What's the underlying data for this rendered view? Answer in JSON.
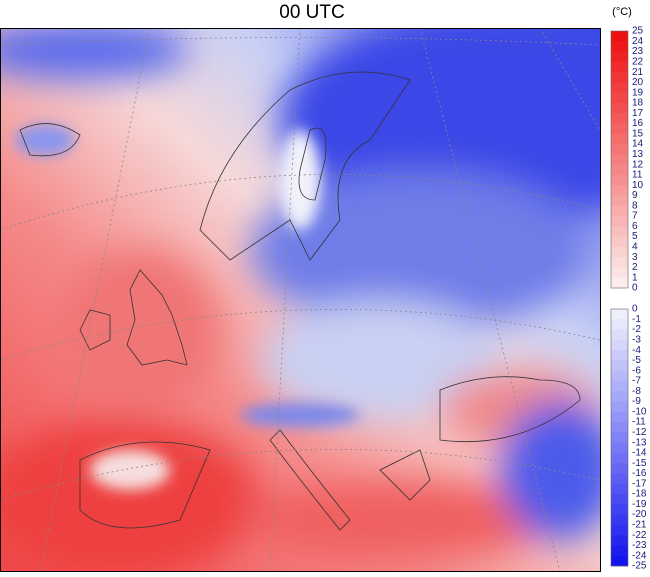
{
  "title": "00 UTC",
  "unit": "(°C)",
  "warm_scale": {
    "ticks": [
      25,
      24,
      23,
      22,
      21,
      20,
      19,
      18,
      17,
      16,
      15,
      14,
      13,
      12,
      11,
      10,
      9,
      8,
      7,
      6,
      5,
      4,
      3,
      2,
      1,
      0
    ]
  },
  "cold_scale": {
    "ticks": [
      0,
      -1,
      -2,
      -3,
      -4,
      -5,
      -6,
      -7,
      -8,
      -9,
      -10,
      -11,
      -12,
      -13,
      -14,
      -15,
      -16,
      -17,
      -18,
      -19,
      -20,
      -21,
      -22,
      -23,
      -24,
      -25
    ]
  }
}
